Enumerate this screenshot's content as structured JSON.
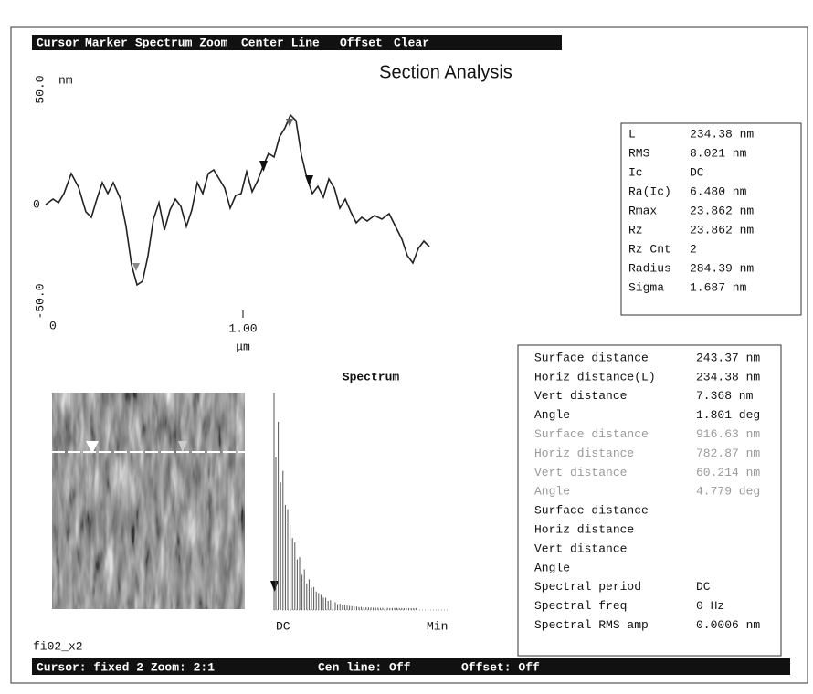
{
  "menu": [
    "Cursor",
    "Marker",
    "Spectrum Zoom",
    "Center Line",
    "Offset",
    "Clear"
  ],
  "title": "Section Analysis",
  "profile": {
    "y_top": "50.0",
    "y_unit": "nm",
    "y_mid": "0",
    "y_bottom": "-50.0",
    "x_start": "0",
    "x_mid": "1.00",
    "x_unit": "μm"
  },
  "stats": [
    [
      "L",
      "234.38 nm"
    ],
    [
      "RMS",
      "8.021 nm"
    ],
    [
      "Ic",
      "DC"
    ],
    [
      "Ra(Ic)",
      "6.480 nm"
    ],
    [
      "Rmax",
      "23.862 nm"
    ],
    [
      "Rz",
      "23.862 nm"
    ],
    [
      "Rz Cnt",
      "2"
    ],
    [
      "Radius",
      "284.39 nm"
    ],
    [
      "Sigma",
      "1.687 nm"
    ]
  ],
  "spectrum": {
    "title": "Spectrum",
    "x_start": "DC",
    "x_end": "Min"
  },
  "measurements": [
    {
      "color": "#111111",
      "rows": [
        [
          "Surface distance",
          "243.37 nm"
        ],
        [
          "Horiz distance(L)",
          "234.38 nm"
        ],
        [
          "Vert distance",
          "7.368 nm"
        ],
        [
          "Angle",
          "1.801 deg"
        ]
      ]
    },
    {
      "color": "#9a9a9a",
      "rows": [
        [
          "Surface distance",
          "916.63 nm"
        ],
        [
          "Horiz distance",
          "782.87 nm"
        ],
        [
          "Vert distance",
          "60.214 nm"
        ],
        [
          "Angle",
          "4.779 deg"
        ]
      ]
    },
    {
      "color": "#111111",
      "rows": [
        [
          "Surface distance"
        ],
        [
          "Horiz distance"
        ],
        [
          "Vert distance"
        ],
        [
          "Angle"
        ]
      ]
    },
    {
      "color": "#111111",
      "rows": [
        [
          "Spectral period",
          "DC"
        ],
        [
          "Spectral freq",
          "0 Hz"
        ],
        [
          "Spectral RMS amp",
          "0.0006 nm"
        ]
      ]
    }
  ],
  "image_label": "fi02_x2",
  "status": [
    "Cursor: fixed 2 Zoom: 2:1",
    "Cen line: Off",
    "Offset: Off"
  ]
}
